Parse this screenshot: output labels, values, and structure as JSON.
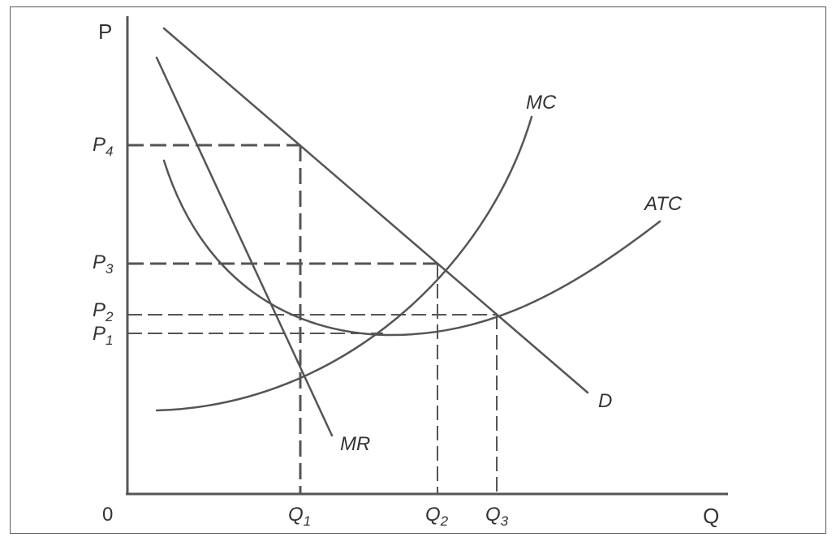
{
  "axes": {
    "y_label": "P",
    "x_label": "Q",
    "origin": "0"
  },
  "price_levels": [
    {
      "base": "P",
      "sub": "4"
    },
    {
      "base": "P",
      "sub": "3"
    },
    {
      "base": "P",
      "sub": "2"
    },
    {
      "base": "P",
      "sub": "1"
    }
  ],
  "quantity_levels": [
    {
      "base": "Q",
      "sub": "1"
    },
    {
      "base": "Q",
      "sub": "2"
    },
    {
      "base": "Q",
      "sub": "3"
    }
  ],
  "curves": {
    "mc": "MC",
    "atc": "ATC",
    "demand": "D",
    "mr": "MR"
  },
  "colors": {
    "line": "#555555",
    "text": "#333333"
  }
}
